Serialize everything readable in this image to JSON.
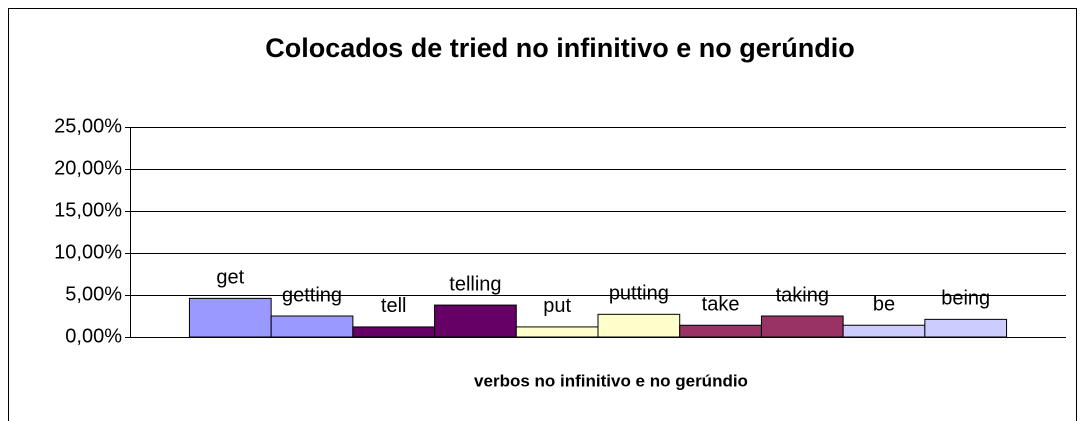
{
  "chart_data": {
    "type": "bar",
    "title": "Colocados de tried no infinitivo e no gerúndio",
    "x_label": "verbos no infinitivo e no gerúndio",
    "categories": [
      "get",
      "getting",
      "tell",
      "telling",
      "put",
      "putting",
      "take",
      "taking",
      "be",
      "being"
    ],
    "values": [
      4.6,
      2.5,
      1.2,
      3.8,
      1.2,
      2.7,
      1.4,
      2.5,
      1.4,
      2.1
    ],
    "colors": [
      "#9999ff",
      "#9999ff",
      "#660066",
      "#660066",
      "#ffffcc",
      "#ffffcc",
      "#993366",
      "#993366",
      "#ccccff",
      "#ccccff"
    ],
    "ylim": [
      0,
      25
    ],
    "yticks": [
      {
        "value": 0,
        "label": "0,00%"
      },
      {
        "value": 5,
        "label": "5,00%"
      },
      {
        "value": 10,
        "label": "10,00%"
      },
      {
        "value": 15,
        "label": "15,00%"
      },
      {
        "value": 20,
        "label": "20,00%"
      },
      {
        "value": 25,
        "label": "25,00%"
      }
    ],
    "grid": true
  }
}
